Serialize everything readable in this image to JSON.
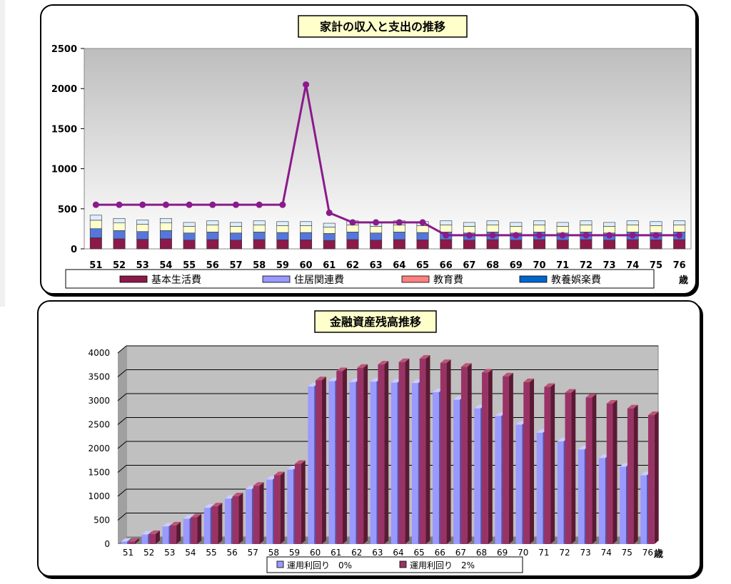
{
  "chart_data": [
    {
      "type": "line",
      "title": "家計の収入と支出の推移",
      "x_unit": "歳",
      "categories": [
        "51",
        "52",
        "53",
        "54",
        "55",
        "56",
        "57",
        "58",
        "59",
        "60",
        "61",
        "62",
        "63",
        "64",
        "65",
        "66",
        "67",
        "68",
        "69",
        "70",
        "71",
        "72",
        "73",
        "74",
        "75",
        "76"
      ],
      "ylim": [
        0,
        2500
      ],
      "yticks": [
        "0",
        "500",
        "1000",
        "1500",
        "2000",
        "2500"
      ],
      "line_series": {
        "name": "",
        "color": "#8B1A8B",
        "values": [
          550,
          550,
          550,
          550,
          550,
          550,
          550,
          550,
          550,
          2050,
          450,
          330,
          330,
          330,
          330,
          170,
          170,
          170,
          170,
          170,
          170,
          170,
          170,
          170,
          170,
          170
        ]
      },
      "stacked_bars": {
        "totals": [
          420,
          380,
          360,
          380,
          330,
          350,
          330,
          350,
          340,
          340,
          320,
          350,
          330,
          350,
          340,
          350,
          330,
          350,
          330,
          350,
          330,
          350,
          330,
          350,
          340,
          350
        ],
        "segments_legend": [
          {
            "name": "基本生活費",
            "color": "#8B1A4A"
          },
          {
            "name": "住居関連費",
            "color": "#9999FF"
          },
          {
            "name": "教育費",
            "color": "#FF8080"
          },
          {
            "name": "教養娯楽費",
            "color": "#0066CC"
          }
        ]
      },
      "grid": false,
      "legend_position": "bottom"
    },
    {
      "type": "bar",
      "title": "金融資産残高推移",
      "x_unit": "歳",
      "categories": [
        "51",
        "52",
        "53",
        "54",
        "55",
        "56",
        "57",
        "58",
        "59",
        "60",
        "61",
        "62",
        "63",
        "64",
        "65",
        "66",
        "67",
        "68",
        "69",
        "70",
        "71",
        "72",
        "73",
        "74",
        "75",
        "76"
      ],
      "ylim": [
        0,
        4000
      ],
      "yticks": [
        "0",
        "500",
        "1000",
        "1500",
        "2000",
        "2500",
        "3000",
        "3500",
        "4000"
      ],
      "series": [
        {
          "name": "運用利回り　0%",
          "color": "#9999FF",
          "values": [
            50,
            200,
            370,
            530,
            760,
            950,
            1150,
            1350,
            1560,
            3300,
            3410,
            3390,
            3400,
            3380,
            3370,
            3180,
            3020,
            2840,
            2680,
            2500,
            2330,
            2150,
            1980,
            1800,
            1620,
            1440
          ]
        },
        {
          "name": "運用利回り　2%",
          "color": "#993366",
          "values": [
            50,
            210,
            390,
            560,
            790,
            1000,
            1220,
            1440,
            1680,
            3430,
            3620,
            3690,
            3760,
            3810,
            3880,
            3790,
            3710,
            3590,
            3510,
            3390,
            3290,
            3170,
            3070,
            2940,
            2840,
            2700
          ]
        }
      ],
      "grid": true,
      "legend_position": "bottom"
    }
  ]
}
